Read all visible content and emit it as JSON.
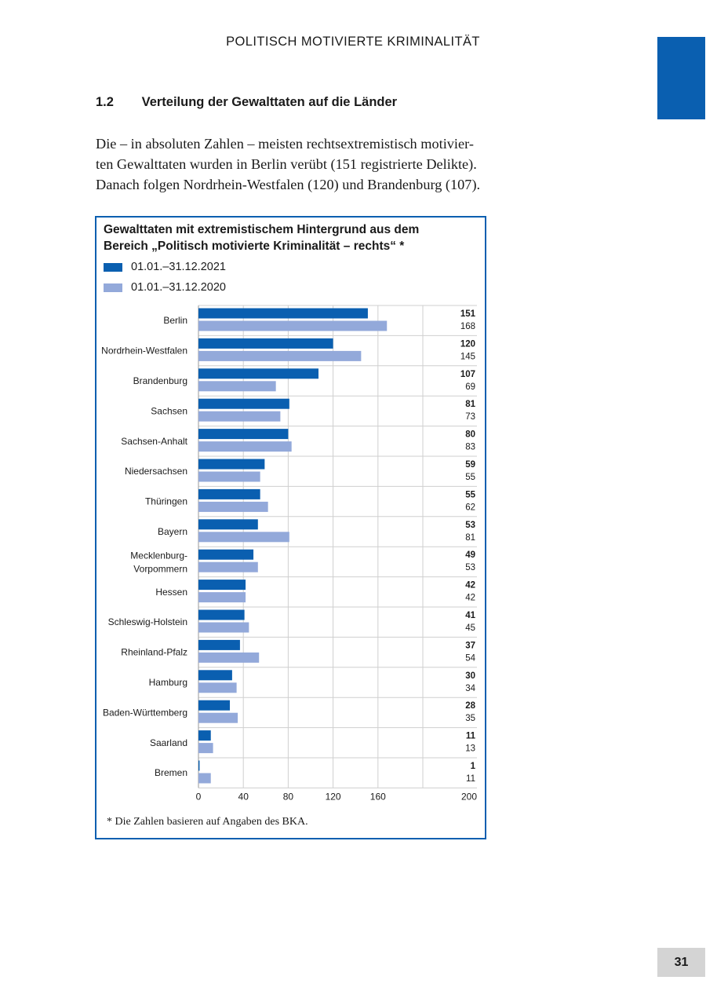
{
  "header": {
    "running_title": "POLITISCH MOTIVIERTE KRIMINALITÄT"
  },
  "section": {
    "number": "1.2",
    "title": "Verteilung der Gewalttaten auf die Länder",
    "paragraph_lines": [
      "Die – in absoluten Zahlen – meisten rechtsextremistisch motivier-",
      "ten Gewalttaten wurden in Berlin verübt (151 registrierte Delikte).",
      "Danach folgen Nordrhein-Westfalen (120) und Brandenburg (107)."
    ]
  },
  "colors": {
    "accent": "#0a5fb0",
    "series_2021": "#0a5fb0",
    "series_2020": "#93a9da",
    "page_tab": "#d4d4d4"
  },
  "chart_data": {
    "type": "bar",
    "orientation": "horizontal",
    "title_lines": [
      "Gewalttaten mit extremistischem Hintergrund aus dem",
      "Bereich „Politisch motivierte Kriminalität – rechts“ *"
    ],
    "categories": [
      [
        "Berlin"
      ],
      [
        "Nordrhein-Westfalen"
      ],
      [
        "Brandenburg"
      ],
      [
        "Sachsen"
      ],
      [
        "Sachsen-Anhalt"
      ],
      [
        "Niedersachsen"
      ],
      [
        "Thüringen"
      ],
      [
        "Bayern"
      ],
      [
        "Mecklenburg-",
        "Vorpommern"
      ],
      [
        "Hessen"
      ],
      [
        "Schleswig-Holstein"
      ],
      [
        "Rheinland-Pfalz"
      ],
      [
        "Hamburg"
      ],
      [
        "Baden-Württemberg"
      ],
      [
        "Saarland"
      ],
      [
        "Bremen"
      ]
    ],
    "series": [
      {
        "name": "01.01.–31.12.2021",
        "values": [
          151,
          120,
          107,
          81,
          80,
          59,
          55,
          53,
          49,
          42,
          41,
          37,
          30,
          28,
          11,
          1
        ]
      },
      {
        "name": "01.01.–31.12.2020",
        "values": [
          168,
          145,
          69,
          73,
          83,
          55,
          62,
          81,
          53,
          42,
          45,
          54,
          34,
          35,
          13,
          11
        ]
      }
    ],
    "xlim": [
      0,
      200
    ],
    "xticks": [
      0,
      40,
      80,
      120,
      160,
      200
    ],
    "xlabel": "",
    "ylabel": "",
    "grid": true,
    "legend_position": "top-left",
    "footnote": "*  Die Zahlen basieren auf Angaben des BKA."
  },
  "page": {
    "number": "31"
  }
}
